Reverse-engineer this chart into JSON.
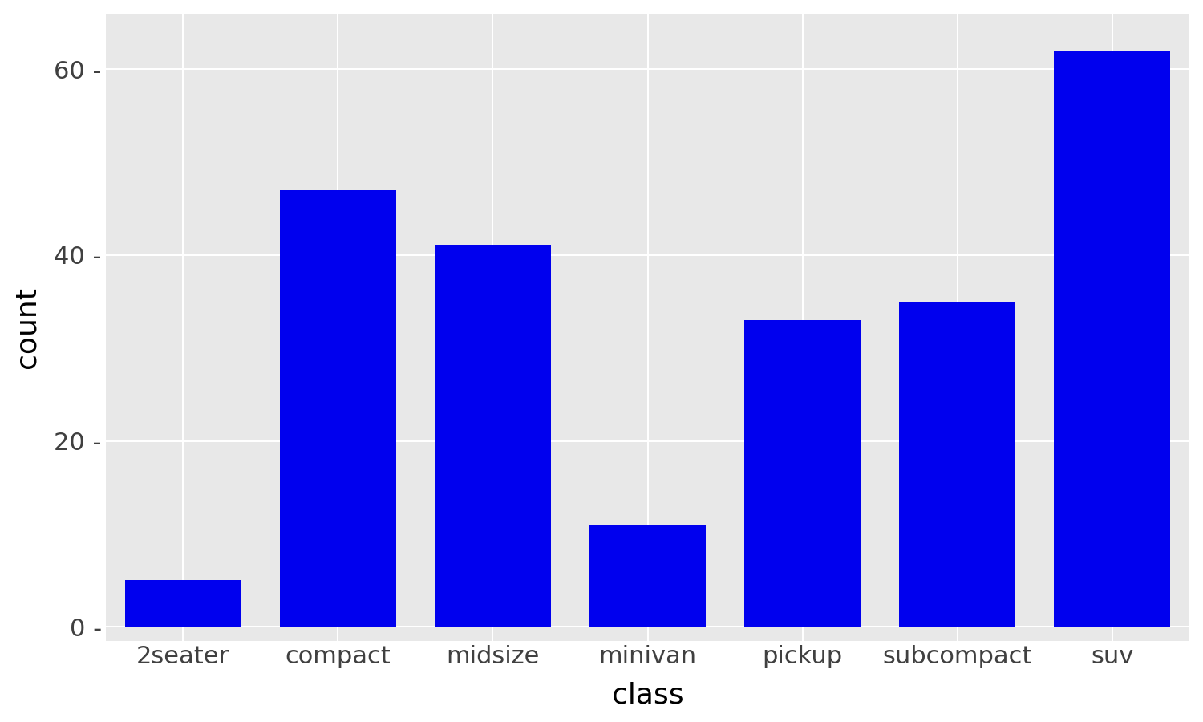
{
  "categories": [
    "2seater",
    "compact",
    "midsize",
    "minivan",
    "pickup",
    "subcompact",
    "suv"
  ],
  "values": [
    5,
    47,
    41,
    11,
    33,
    35,
    62
  ],
  "bar_color": "#0000EE",
  "figure_background": "#FFFFFF",
  "panel_background": "#E8E8E8",
  "grid_color": "#FFFFFF",
  "xlabel": "class",
  "ylabel": "count",
  "xlabel_fontsize": 26,
  "ylabel_fontsize": 26,
  "tick_fontsize": 22,
  "yticks": [
    0,
    20,
    40,
    60
  ],
  "ylim": [
    -1.5,
    66
  ],
  "bar_width": 0.75
}
